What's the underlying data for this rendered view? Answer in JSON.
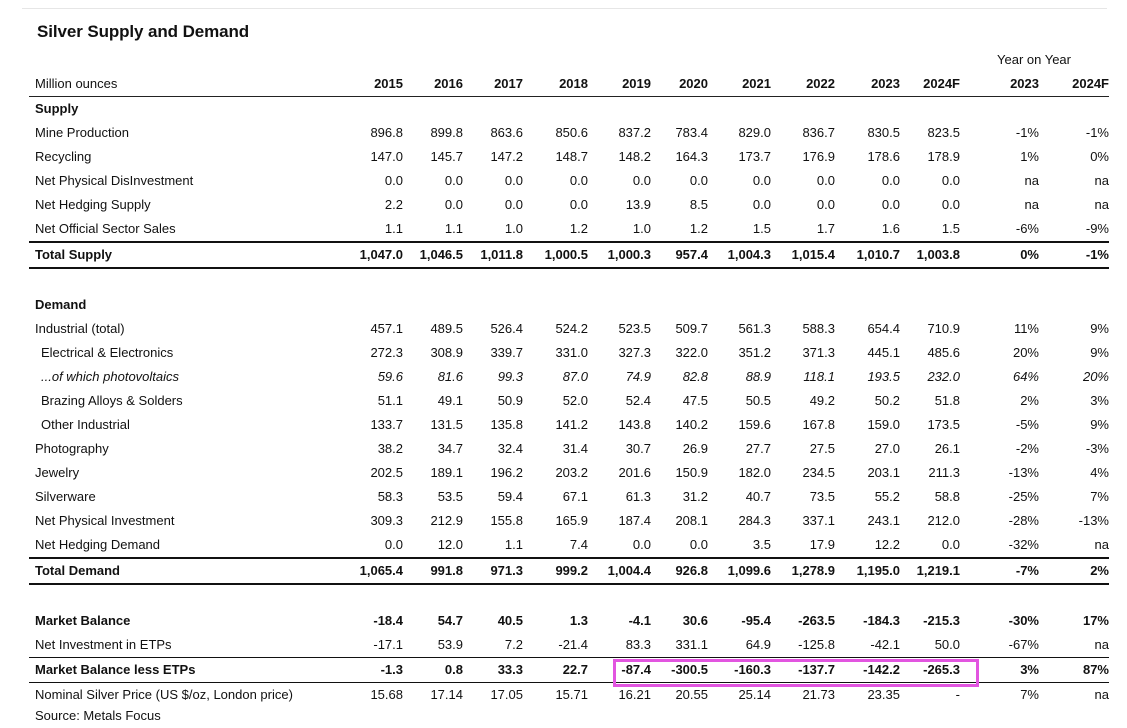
{
  "title": "Silver Supply and Demand",
  "yoy_header": "Year on Year",
  "unit_label": "Million ounces",
  "columns": [
    "2015",
    "2016",
    "2017",
    "2018",
    "2019",
    "2020",
    "2021",
    "2022",
    "2023",
    "2024F",
    "2023",
    "2024F"
  ],
  "highlight_color": "#e255e0",
  "rows": [
    {
      "type": "section",
      "label": "Supply"
    },
    {
      "label": "Mine Production",
      "values": [
        "896.8",
        "899.8",
        "863.6",
        "850.6",
        "837.2",
        "783.4",
        "829.0",
        "836.7",
        "830.5",
        "823.5",
        "-1%",
        "-1%"
      ]
    },
    {
      "label": "Recycling",
      "values": [
        "147.0",
        "145.7",
        "147.2",
        "148.7",
        "148.2",
        "164.3",
        "173.7",
        "176.9",
        "178.6",
        "178.9",
        "1%",
        "0%"
      ]
    },
    {
      "label": "Net Physical DisInvestment",
      "values": [
        "0.0",
        "0.0",
        "0.0",
        "0.0",
        "0.0",
        "0.0",
        "0.0",
        "0.0",
        "0.0",
        "0.0",
        "na",
        "na"
      ]
    },
    {
      "label": "Net Hedging Supply",
      "values": [
        "2.2",
        "0.0",
        "0.0",
        "0.0",
        "13.9",
        "8.5",
        "0.0",
        "0.0",
        "0.0",
        "0.0",
        "na",
        "na"
      ]
    },
    {
      "label": "Net Official Sector Sales",
      "values": [
        "1.1",
        "1.1",
        "1.0",
        "1.2",
        "1.0",
        "1.2",
        "1.5",
        "1.7",
        "1.6",
        "1.5",
        "-6%",
        "-9%"
      ]
    },
    {
      "type": "total",
      "label": "Total Supply",
      "values": [
        "1,047.0",
        "1,046.5",
        "1,011.8",
        "1,000.5",
        "1,000.3",
        "957.4",
        "1,004.3",
        "1,015.4",
        "1,010.7",
        "1,003.8",
        "0%",
        "-1%"
      ]
    },
    {
      "type": "spacer"
    },
    {
      "type": "section",
      "label": "Demand"
    },
    {
      "label": "Industrial (total)",
      "values": [
        "457.1",
        "489.5",
        "526.4",
        "524.2",
        "523.5",
        "509.7",
        "561.3",
        "588.3",
        "654.4",
        "710.9",
        "11%",
        "9%"
      ]
    },
    {
      "type": "indent",
      "label": "Electrical & Electronics",
      "values": [
        "272.3",
        "308.9",
        "339.7",
        "331.0",
        "327.3",
        "322.0",
        "351.2",
        "371.3",
        "445.1",
        "485.6",
        "20%",
        "9%"
      ]
    },
    {
      "type": "italic",
      "label": "...of which photovoltaics",
      "values": [
        "59.6",
        "81.6",
        "99.3",
        "87.0",
        "74.9",
        "82.8",
        "88.9",
        "118.1",
        "193.5",
        "232.0",
        "64%",
        "20%"
      ]
    },
    {
      "type": "indent",
      "label": "Brazing Alloys & Solders",
      "values": [
        "51.1",
        "49.1",
        "50.9",
        "52.0",
        "52.4",
        "47.5",
        "50.5",
        "49.2",
        "50.2",
        "51.8",
        "2%",
        "3%"
      ]
    },
    {
      "type": "indent",
      "label": "Other Industrial",
      "values": [
        "133.7",
        "131.5",
        "135.8",
        "141.2",
        "143.8",
        "140.2",
        "159.6",
        "167.8",
        "159.0",
        "173.5",
        "-5%",
        "9%"
      ]
    },
    {
      "label": "Photography",
      "values": [
        "38.2",
        "34.7",
        "32.4",
        "31.4",
        "30.7",
        "26.9",
        "27.7",
        "27.5",
        "27.0",
        "26.1",
        "-2%",
        "-3%"
      ]
    },
    {
      "label": "Jewelry",
      "values": [
        "202.5",
        "189.1",
        "196.2",
        "203.2",
        "201.6",
        "150.9",
        "182.0",
        "234.5",
        "203.1",
        "211.3",
        "-13%",
        "4%"
      ]
    },
    {
      "label": "Silverware",
      "values": [
        "58.3",
        "53.5",
        "59.4",
        "67.1",
        "61.3",
        "31.2",
        "40.7",
        "73.5",
        "55.2",
        "58.8",
        "-25%",
        "7%"
      ]
    },
    {
      "label": "Net Physical Investment",
      "values": [
        "309.3",
        "212.9",
        "155.8",
        "165.9",
        "187.4",
        "208.1",
        "284.3",
        "337.1",
        "243.1",
        "212.0",
        "-28%",
        "-13%"
      ]
    },
    {
      "label": "Net Hedging Demand",
      "values": [
        "0.0",
        "12.0",
        "1.1",
        "7.4",
        "0.0",
        "0.0",
        "3.5",
        "17.9",
        "12.2",
        "0.0",
        "-32%",
        "na"
      ]
    },
    {
      "type": "total",
      "label": "Total Demand",
      "values": [
        "1,065.4",
        "991.8",
        "971.3",
        "999.2",
        "1,004.4",
        "926.8",
        "1,099.6",
        "1,278.9",
        "1,195.0",
        "1,219.1",
        "-7%",
        "2%"
      ]
    },
    {
      "type": "spacer"
    },
    {
      "type": "bold",
      "label": "Market Balance",
      "values": [
        "-18.4",
        "54.7",
        "40.5",
        "1.3",
        "-4.1",
        "30.6",
        "-95.4",
        "-263.5",
        "-184.3",
        "-215.3",
        "-30%",
        "17%"
      ]
    },
    {
      "label": "Net Investment in ETPs",
      "values": [
        "-17.1",
        "53.9",
        "7.2",
        "-21.4",
        "83.3",
        "331.1",
        "64.9",
        "-125.8",
        "-42.1",
        "50.0",
        "-67%",
        "na"
      ]
    },
    {
      "type": "mblt",
      "label": "Market Balance less ETPs",
      "values": [
        "-1.3",
        "0.8",
        "33.3",
        "22.7",
        "-87.4",
        "-300.5",
        "-160.3",
        "-137.7",
        "-142.2",
        "-265.3",
        "3%",
        "87%"
      ]
    },
    {
      "label": "Nominal Silver Price (US $/oz, London price)",
      "values": [
        "15.68",
        "17.14",
        "17.05",
        "15.71",
        "16.21",
        "20.55",
        "25.14",
        "21.73",
        "23.35",
        "-",
        "7%",
        "na"
      ]
    },
    {
      "type": "source",
      "label": "Source: Metals Focus"
    }
  ]
}
